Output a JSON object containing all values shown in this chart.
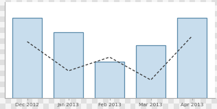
{
  "categories": [
    "Dec 2012",
    "Jan 2013",
    "Feb 2013",
    "Mar 2013",
    "Apr 2013"
  ],
  "bar_values": [
    0.88,
    0.72,
    0.4,
    0.58,
    0.88
  ],
  "line_values": [
    0.62,
    0.3,
    0.45,
    0.2,
    0.68
  ],
  "bar_color": "#c8dded",
  "bar_edge_color": "#5a8aaa",
  "line_color": "#333333",
  "ylim": [
    0,
    1.05
  ],
  "bar_width": 0.72,
  "checker_light": "#f5f5f5",
  "checker_dark": "#e0e0e0",
  "spine_color": "#aaaaaa",
  "tick_color": "#666666",
  "label_color": "#555555",
  "label_fontsize": 5.2
}
